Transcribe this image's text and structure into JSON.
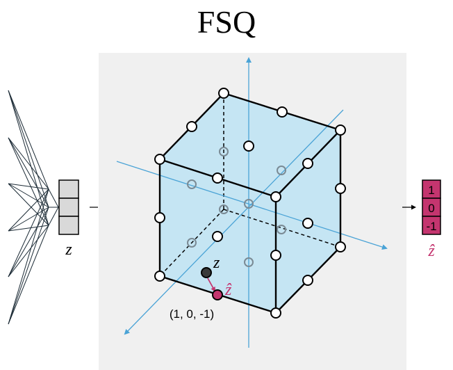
{
  "title": "FSQ",
  "input_vector": {
    "label": "z"
  },
  "output_vector": {
    "label": "ẑ",
    "values": [
      "1",
      "0",
      "-1"
    ],
    "color": "#c4356f"
  },
  "point": {
    "continuous_label": "z",
    "quantized_label": "ẑ",
    "coordinate_label": "(1, 0, -1)"
  },
  "colors": {
    "panel": "#f0f0f0",
    "cube_fill": "#bde3f3",
    "axis": "#4aa3d6",
    "accent": "#c4356f"
  }
}
